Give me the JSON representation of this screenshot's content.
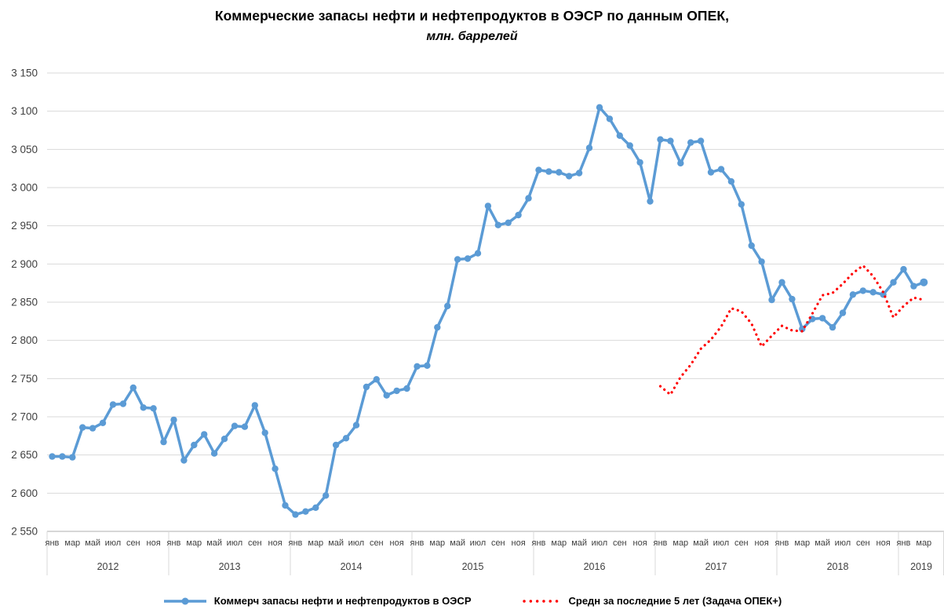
{
  "header": {
    "title": "Коммерческие запасы нефти и нефтепродуктов в ОЭСР по данным ОПЕК,",
    "subtitle": "млн. баррелей"
  },
  "legend": {
    "stocks_label": "Коммерч запасы нефти и нефтепродуктов в ОЭСР",
    "average_label": "Средн за последние 5 лет (Задача ОПЕК+)"
  },
  "colors": {
    "stocks_line": "#5B9BD5",
    "average_line": "#FF0000",
    "gridline": "#D9D9D9",
    "axis_line": "#BFBFBF",
    "tick_text": "#404040"
  },
  "chart_data": {
    "type": "line",
    "title": "Коммерческие запасы нефти и нефтепродуктов в ОЭСР по данным ОПЕК,",
    "subtitle": "млн. баррелей",
    "ylim": [
      2550,
      3150
    ],
    "ytick_step": 50,
    "ytick_labels": [
      "3 150",
      "3 100",
      "3 050",
      "3 000",
      "2 950",
      "2 900",
      "2 850",
      "2 800",
      "2 750",
      "2 700",
      "2 650",
      "2 600",
      "2 550"
    ],
    "grid": "horizontal",
    "legend_position": "bottom",
    "years": [
      2012,
      2013,
      2014,
      2015,
      2016,
      2017,
      2018,
      2019
    ],
    "month_tick_labels": [
      "янв",
      "мар",
      "май",
      "июл",
      "сен",
      "ноя"
    ],
    "last_year_tick_count": 2,
    "x_start": "2012-01",
    "x_end": "2019-03",
    "series": [
      {
        "name": "Коммерч запасы нефти и нефтепродуктов в ОЭСР",
        "color": "#5B9BD5",
        "style": "solid-markers",
        "start_month_index": 0,
        "values": [
          2648,
          2648,
          2647,
          2686,
          2685,
          2692,
          2716,
          2717,
          2738,
          2712,
          2711,
          2667,
          2696,
          2643,
          2663,
          2677,
          2652,
          2671,
          2688,
          2687,
          2715,
          2679,
          2632,
          2584,
          2572,
          2576,
          2581,
          2597,
          2663,
          2672,
          2689,
          2739,
          2749,
          2728,
          2734,
          2737,
          2766,
          2767,
          2817,
          2845,
          2906,
          2907,
          2914,
          2976,
          2951,
          2954,
          2964,
          2986,
          3023,
          3021,
          3020,
          3015,
          3019,
          3052,
          3105,
          3090,
          3068,
          3055,
          3033,
          2982,
          3063,
          3061,
          3032,
          3059,
          3061,
          3020,
          3024,
          3008,
          2978,
          2924,
          2903,
          2853,
          2876,
          2854,
          2815,
          2828,
          2829,
          2817,
          2836,
          2860,
          2865,
          2863,
          2860,
          2876,
          2893,
          2871,
          2876
        ]
      },
      {
        "name": "Средн за последние 5 лет (Задача ОПЕК+)",
        "color": "#FF0000",
        "style": "dotted",
        "start_month_index": 60,
        "values": [
          2740,
          2729,
          2752,
          2768,
          2789,
          2801,
          2818,
          2842,
          2838,
          2822,
          2792,
          2806,
          2819,
          2813,
          2812,
          2835,
          2859,
          2862,
          2874,
          2888,
          2898,
          2884,
          2863,
          2830,
          2845,
          2856,
          2853
        ]
      }
    ]
  }
}
